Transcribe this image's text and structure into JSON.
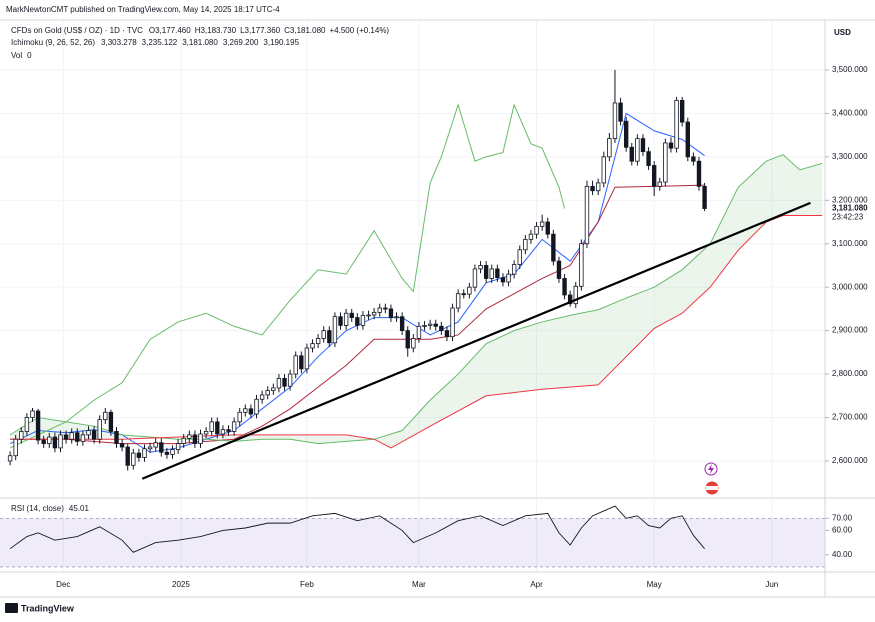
{
  "header": {
    "published": "MarkNewtonCMT published on TradingView.com, May 14, 2025 18:17 UTC-4",
    "brand": "TradingView"
  },
  "legend": {
    "symbol": "CFDs on Gold (US$ / OZ) · 1D · TVC",
    "ohlc": [
      {
        "label": "O",
        "value": "3,177.460"
      },
      {
        "label": "H",
        "value": "3,183.730"
      },
      {
        "label": "L",
        "value": "3,177.360"
      },
      {
        "label": "C",
        "value": "3,181.080"
      }
    ],
    "change": "+4.500 (+0.14%)",
    "ichimoku": {
      "title": "Ichimoku (9, 26, 52, 26)",
      "values": [
        {
          "text": "3,303.278",
          "color": "#2962ff"
        },
        {
          "text": "3,235.122",
          "color": "#b2283a"
        },
        {
          "text": "3,181.080",
          "color": "#43a047"
        },
        {
          "text": "3,269.200",
          "color": "#43a047"
        },
        {
          "text": "3,190.195",
          "color": "#f23645"
        }
      ]
    },
    "volume": {
      "title": "Vol",
      "value": "0"
    }
  },
  "chart_data": [
    {
      "type": "candlestick",
      "currency": "USD",
      "color_up": "#ffffff",
      "color_down": "#131722",
      "border": "#131722",
      "xlim": [
        -1.8,
        145.5
      ],
      "ylim": [
        2517,
        3615
      ],
      "xticks": [
        {
          "value": 9.5,
          "label": "Dec"
        },
        {
          "value": 30.5,
          "label": "2025"
        },
        {
          "value": 53,
          "label": "Feb"
        },
        {
          "value": 73,
          "label": "Mar"
        },
        {
          "value": 94,
          "label": "Apr"
        },
        {
          "value": 115,
          "label": "May"
        },
        {
          "value": 136,
          "label": "Jun"
        }
      ],
      "yticks": [
        {
          "value": 2600,
          "label": "2,600.000"
        },
        {
          "value": 2700,
          "label": "2,700.000"
        },
        {
          "value": 2800,
          "label": "2,800.000"
        },
        {
          "value": 2900,
          "label": "2,900.000"
        },
        {
          "value": 3000,
          "label": "3,000.000"
        },
        {
          "value": 3100,
          "label": "3,100.000"
        },
        {
          "value": 3200,
          "label": "3,200.000"
        },
        {
          "value": 3300,
          "label": "3,300.000"
        },
        {
          "value": 3400,
          "label": "3,400.000"
        },
        {
          "value": 3500,
          "label": "3,500.000"
        }
      ],
      "grid": true,
      "open": [
        2600,
        2612,
        2650,
        2668,
        2700,
        2715,
        2648,
        2640,
        2655,
        2630,
        2660,
        2650,
        2665,
        2645,
        2660,
        2670,
        2650,
        2695,
        2712,
        2668,
        2640,
        2632,
        2590,
        2618,
        2608,
        2628,
        2632,
        2642,
        2620,
        2615,
        2626,
        2640,
        2652,
        2660,
        2640,
        2662,
        2668,
        2690,
        2662,
        2672,
        2668,
        2690,
        2712,
        2720,
        2708,
        2742,
        2752,
        2762,
        2768,
        2790,
        2772,
        2800,
        2842,
        2812,
        2860,
        2870,
        2882,
        2900,
        2872,
        2932,
        2912,
        2940,
        2930,
        2912,
        2935,
        2936,
        2942,
        2952,
        2950,
        2930,
        2932,
        2900,
        2860,
        2882,
        2910,
        2912,
        2915,
        2910,
        2900,
        2886,
        2952,
        2985,
        2984,
        3000,
        3042,
        3050,
        3020,
        3042,
        3022,
        3012,
        3030,
        3052,
        3086,
        3110,
        3122,
        3140,
        3150,
        3122,
        3060,
        3020,
        2982,
        2962,
        3002,
        3100,
        3232,
        3222,
        3240,
        3300,
        3342,
        3424,
        3382,
        3322,
        3290,
        3342,
        3312,
        3280,
        3232,
        3242,
        3332,
        3320,
        3430,
        3380,
        3300,
        3290,
        3232
      ],
      "high": [
        2622,
        2660,
        2678,
        2710,
        2722,
        2720,
        2658,
        2665,
        2665,
        2670,
        2670,
        2675,
        2675,
        2670,
        2680,
        2680,
        2705,
        2722,
        2718,
        2678,
        2650,
        2640,
        2628,
        2628,
        2638,
        2642,
        2652,
        2652,
        2630,
        2636,
        2650,
        2662,
        2670,
        2670,
        2672,
        2678,
        2700,
        2700,
        2682,
        2682,
        2700,
        2722,
        2730,
        2730,
        2752,
        2762,
        2772,
        2778,
        2800,
        2800,
        2810,
        2852,
        2852,
        2870,
        2880,
        2892,
        2910,
        2910,
        2942,
        2942,
        2950,
        2950,
        2940,
        2945,
        2946,
        2952,
        2962,
        2962,
        2960,
        2942,
        2942,
        2910,
        2892,
        2920,
        2922,
        2925,
        2925,
        2920,
        2910,
        2962,
        2995,
        2995,
        3010,
        3052,
        3060,
        3060,
        3052,
        3052,
        3032,
        3040,
        3062,
        3096,
        3120,
        3132,
        3150,
        3167,
        3160,
        3132,
        3070,
        3030,
        2992,
        3012,
        3110,
        3245,
        3245,
        3250,
        3312,
        3355,
        3500,
        3436,
        3392,
        3332,
        3352,
        3352,
        3322,
        3290,
        3252,
        3342,
        3345,
        3438,
        3438,
        3390,
        3310,
        3300,
        3240
      ],
      "low": [
        2590,
        2602,
        2640,
        2658,
        2690,
        2638,
        2630,
        2630,
        2620,
        2620,
        2640,
        2640,
        2635,
        2635,
        2650,
        2640,
        2640,
        2685,
        2658,
        2630,
        2622,
        2578,
        2580,
        2598,
        2598,
        2618,
        2622,
        2610,
        2605,
        2605,
        2616,
        2630,
        2642,
        2630,
        2630,
        2652,
        2658,
        2652,
        2652,
        2658,
        2658,
        2680,
        2702,
        2698,
        2698,
        2732,
        2742,
        2752,
        2758,
        2762,
        2762,
        2790,
        2802,
        2802,
        2850,
        2860,
        2872,
        2862,
        2862,
        2902,
        2902,
        2920,
        2902,
        2902,
        2925,
        2926,
        2932,
        2940,
        2920,
        2920,
        2890,
        2840,
        2850,
        2872,
        2900,
        2902,
        2900,
        2890,
        2876,
        2876,
        2942,
        2974,
        2974,
        2990,
        3032,
        3010,
        3010,
        3012,
        3002,
        3002,
        3020,
        3042,
        3076,
        3100,
        3112,
        3130,
        3112,
        3050,
        3010,
        2972,
        2955,
        2952,
        2992,
        3090,
        3212,
        3212,
        3230,
        3290,
        3332,
        3372,
        3312,
        3280,
        3280,
        3302,
        3270,
        3210,
        3222,
        3232,
        3310,
        3310,
        3370,
        3290,
        3280,
        3222,
        3175
      ],
      "close": [
        2612,
        2650,
        2668,
        2700,
        2715,
        2648,
        2640,
        2655,
        2630,
        2660,
        2650,
        2665,
        2645,
        2660,
        2670,
        2650,
        2695,
        2712,
        2668,
        2640,
        2632,
        2590,
        2618,
        2608,
        2628,
        2632,
        2642,
        2620,
        2615,
        2626,
        2640,
        2652,
        2660,
        2640,
        2662,
        2668,
        2690,
        2662,
        2672,
        2668,
        2690,
        2712,
        2720,
        2708,
        2742,
        2752,
        2762,
        2768,
        2790,
        2772,
        2800,
        2842,
        2812,
        2860,
        2870,
        2882,
        2900,
        2872,
        2932,
        2912,
        2940,
        2930,
        2912,
        2935,
        2936,
        2942,
        2952,
        2950,
        2930,
        2932,
        2900,
        2860,
        2882,
        2910,
        2912,
        2915,
        2910,
        2900,
        2886,
        2952,
        2985,
        2984,
        3000,
        3042,
        3050,
        3020,
        3042,
        3022,
        3012,
        3030,
        3052,
        3086,
        3110,
        3122,
        3140,
        3150,
        3122,
        3060,
        3020,
        2982,
        2962,
        3002,
        3100,
        3232,
        3222,
        3240,
        3300,
        3342,
        3424,
        3382,
        3322,
        3290,
        3342,
        3312,
        3280,
        3232,
        3242,
        3332,
        3320,
        3430,
        3380,
        3300,
        3290,
        3232,
        3181
      ],
      "lines": [
        {
          "color": "#2962ff",
          "x": [
            0,
            5,
            10,
            15,
            20,
            25,
            30,
            35,
            40,
            45,
            50,
            55,
            60,
            65,
            70,
            75,
            80,
            85,
            90,
            95,
            100,
            105,
            110,
            115,
            120,
            124
          ],
          "values": [
            2640,
            2670,
            2665,
            2672,
            2660,
            2620,
            2630,
            2650,
            2670,
            2720,
            2770,
            2840,
            2900,
            2930,
            2930,
            2890,
            2920,
            3010,
            3030,
            3110,
            3060,
            3150,
            3400,
            3360,
            3340,
            3303
          ]
        },
        {
          "color": "#b2283a",
          "x": [
            0,
            10,
            20,
            30,
            40,
            45,
            50,
            55,
            60,
            65,
            70,
            75,
            80,
            85,
            90,
            95,
            100,
            105,
            108,
            115,
            124
          ],
          "values": [
            2650,
            2650,
            2640,
            2640,
            2650,
            2680,
            2720,
            2770,
            2820,
            2880,
            2880,
            2880,
            2890,
            2950,
            2985,
            3020,
            3050,
            3150,
            3230,
            3232,
            3235
          ]
        },
        {
          "color": "#66bb6a",
          "x": [
            0,
            5,
            10,
            15,
            20,
            25,
            30,
            35,
            40,
            45,
            50,
            55,
            60,
            65,
            70,
            72,
            75,
            77,
            80,
            83,
            85,
            88,
            90,
            93,
            95,
            98,
            99
          ],
          "values": [
            2630,
            2660,
            2690,
            2740,
            2780,
            2880,
            2920,
            2940,
            2910,
            2890,
            2970,
            3040,
            3030,
            3130,
            3020,
            2990,
            3240,
            3300,
            3420,
            3290,
            3300,
            3310,
            3420,
            3330,
            3320,
            3230,
            3181
          ]
        },
        {
          "color": "#66bb6a",
          "x": [
            0,
            5,
            10,
            15,
            20,
            25,
            30,
            35,
            40,
            45,
            50,
            55,
            60,
            65,
            70,
            75,
            80,
            85,
            90,
            95,
            100,
            105,
            110,
            115,
            120,
            125,
            130,
            135,
            138,
            141,
            145
          ],
          "values": [
            2660,
            2700,
            2690,
            2680,
            2660,
            2655,
            2650,
            2650,
            2645,
            2650,
            2650,
            2640,
            2645,
            2650,
            2670,
            2740,
            2800,
            2870,
            2900,
            2920,
            2935,
            2948,
            2975,
            3000,
            3040,
            3100,
            3230,
            3290,
            3305,
            3270,
            3285
          ]
        },
        {
          "color": "#f23645",
          "x": [
            0,
            20,
            40,
            60,
            65,
            68,
            75,
            85,
            95,
            105,
            110,
            115,
            120,
            125,
            130,
            135,
            138,
            145
          ],
          "values": [
            2650,
            2650,
            2660,
            2660,
            2650,
            2630,
            2680,
            2750,
            2765,
            2775,
            2840,
            2905,
            2940,
            3000,
            3085,
            3150,
            3165,
            3165
          ]
        }
      ],
      "cloud_color": "#43a047",
      "trendline": {
        "color": "#000000",
        "x": [
          23.6,
          142.9
        ],
        "values": [
          2559,
          3194
        ]
      },
      "last_price": {
        "value": 3181.08,
        "label": "3,181.080",
        "countdown": "23:42:23"
      }
    },
    {
      "type": "line",
      "title": "RSI (14, close)",
      "color": "#131722",
      "band": [
        30,
        70
      ],
      "band_color": "#7e57c2",
      "xlim": [
        -1.8,
        145.5
      ],
      "ylim": [
        27.5,
        85
      ],
      "yticks": [
        {
          "value": 40,
          "label": "40.00"
        },
        {
          "value": 60,
          "label": "60.00"
        },
        {
          "value": 70,
          "label": "70.00"
        }
      ],
      "x": [
        0,
        3,
        5,
        8,
        12,
        16,
        20,
        22,
        26,
        30,
        34,
        38,
        42,
        46,
        50,
        54,
        58,
        62,
        66,
        70,
        72,
        76,
        80,
        84,
        88,
        92,
        96,
        98,
        100,
        102,
        104,
        106,
        108,
        110,
        112,
        114,
        116,
        118,
        120,
        122,
        124
      ],
      "values": [
        45,
        55,
        58,
        52,
        55,
        63,
        52,
        42,
        50,
        52,
        55,
        60,
        62,
        66,
        66,
        72,
        74,
        68,
        72,
        60,
        50,
        58,
        68,
        72,
        64,
        72,
        74,
        58,
        48,
        62,
        72,
        76,
        80,
        70,
        72,
        64,
        62,
        70,
        72,
        56,
        45.01
      ]
    }
  ]
}
